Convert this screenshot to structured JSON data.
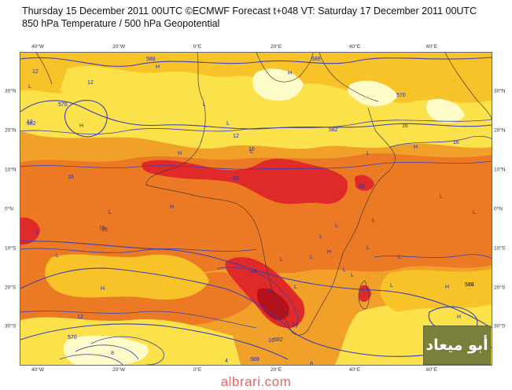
{
  "title": {
    "line1": "Thursday 15 December 2011 00UTC ©ECMWF Forecast t+048 VT: Saturday 17 December 2011 00UTC",
    "line2": "850 hPa Temperature / 500 hPa Geopotential"
  },
  "axes": {
    "lon_ticks": [
      "40°W",
      "20°W",
      "0°E",
      "20°E",
      "40°E",
      "60°E"
    ],
    "lat_ticks_left": [
      "30°N",
      "20°N",
      "10°N",
      "0°N",
      "10°S",
      "20°S",
      "30°S"
    ],
    "lat_ticks_right": [
      "30°N",
      "20°N",
      "10°N",
      "0°N",
      "10°S",
      "20°S",
      "30°S"
    ]
  },
  "contour_labels": {
    "temperature": [
      "12",
      "12",
      "16",
      "12",
      "16",
      "16",
      "20",
      "20",
      "16",
      "16",
      "24",
      "24",
      "20",
      "16",
      "8",
      "12",
      "12",
      "4",
      "8",
      "16"
    ],
    "geopotential": [
      "588",
      "576",
      "582",
      "588",
      "570",
      "582",
      "576",
      "570",
      "582",
      "588",
      "582"
    ]
  },
  "pressure_markers": [
    "H",
    "H",
    "H",
    "L",
    "L",
    "H",
    "L",
    "L",
    "H",
    "L",
    "L",
    "L",
    "L",
    "L",
    "H",
    "L",
    "L",
    "L",
    "H",
    "L",
    "L",
    "L",
    "H",
    "H",
    "L",
    "L",
    "L",
    "H",
    "L",
    "L",
    "L",
    "L"
  ],
  "colors": {
    "very_cold": "#fdfbc8",
    "cold": "#fbe24a",
    "mild": "#f7c328",
    "warm": "#f1a12a",
    "hot": "#ec7a24",
    "very_hot": "#e02a2a",
    "extreme": "#b5121b",
    "contour": "#3a40b0"
  },
  "watermark": {
    "url": "albrari.com",
    "logo_text": "أبو ميعاد"
  }
}
